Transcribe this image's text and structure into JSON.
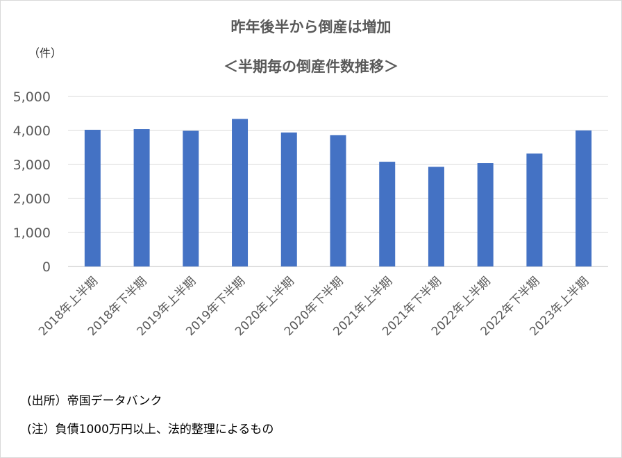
{
  "chart_data": {
    "type": "bar",
    "title": "昨年後半から倒産は増加",
    "subtitle": "＜半期毎の倒産件数推移＞",
    "ylabel": "（件）",
    "xlabel": "",
    "categories": [
      "2018年上半期",
      "2018年下半期",
      "2019年上半期",
      "2019年下半期",
      "2020年上半期",
      "2020年下半期",
      "2021年上半期",
      "2021年下半期",
      "2022年上半期",
      "2022年下半期",
      "2023年上半期"
    ],
    "values": [
      4020,
      4040,
      3990,
      4340,
      3940,
      3860,
      3080,
      2930,
      3040,
      3320,
      4000
    ],
    "ylim": [
      0,
      5000
    ],
    "yticks": [
      0,
      1000,
      2000,
      3000,
      4000,
      5000
    ],
    "ytick_labels": [
      "0",
      "1,000",
      "2,000",
      "3,000",
      "4,000",
      "5,000"
    ],
    "bar_color": "#4472c4",
    "grid": true,
    "legend": "none"
  },
  "notes": {
    "source": "(出所）帝国データバンク",
    "note": "(注）負債1000万円以上、法的整理によるもの"
  }
}
